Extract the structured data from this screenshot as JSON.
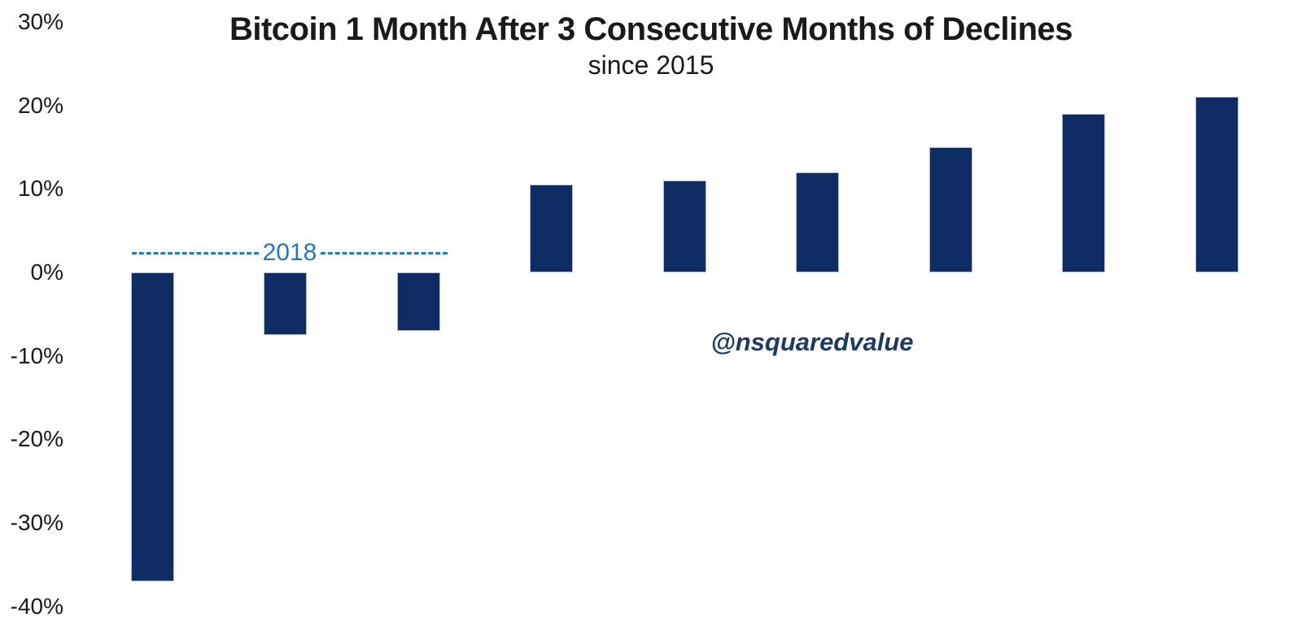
{
  "title": "Bitcoin 1 Month After 3 Consecutive Months of Declines",
  "subtitle": "since 2015",
  "watermark": "@nsquaredvalue",
  "annotation": {
    "label": "2018"
  },
  "colors": {
    "bar": "#0f2c64",
    "bar_edge": "#aebcd4",
    "annotation_blue": "#2776bb",
    "watermark_navy": "#1f3864",
    "axis_text": "#1a1a1a"
  },
  "chart_data": {
    "type": "bar",
    "title": "Bitcoin 1 Month After 3 Consecutive Months of Declines",
    "subtitle": "since 2015",
    "unit": "percent",
    "values": [
      -37,
      -7.5,
      -7,
      10.5,
      11,
      12,
      15,
      19,
      21
    ],
    "y_ticks": [
      30,
      20,
      10,
      0,
      -10,
      -20,
      -30,
      -40
    ],
    "y_tick_labels": [
      "30%",
      "20%",
      "10%",
      "0%",
      "-10%",
      "-20%",
      "-30%",
      "-40%"
    ],
    "ylim": [
      -42,
      32
    ],
    "x_axis_labels": [],
    "grid": false,
    "legend": false,
    "bar_color": "#0f2c64",
    "annotation": {
      "label": "2018",
      "applies_to_bars": [
        1,
        2,
        3
      ],
      "style": "dashed-line",
      "color": "#2776bb"
    },
    "watermark": {
      "text": "@nsquaredvalue",
      "color": "#1f3864"
    }
  }
}
